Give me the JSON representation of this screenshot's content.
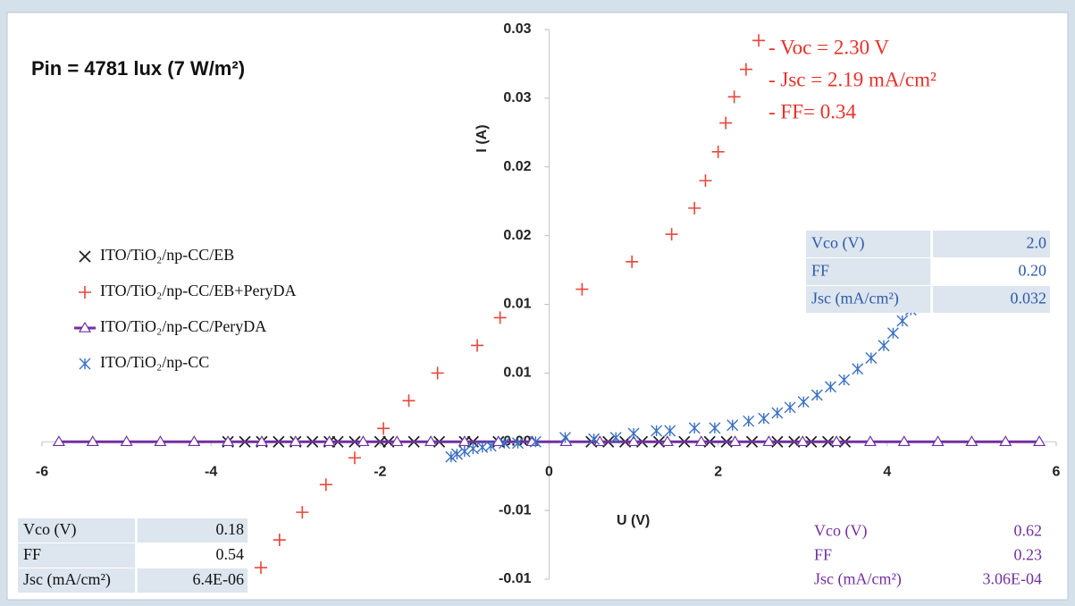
{
  "chart_data": {
    "type": "scatter",
    "title": "Pin = 4781 lux (7 W/m²)",
    "xlabel": "U (V)",
    "ylabel": "I (A)",
    "xlim": [
      -6,
      6
    ],
    "xticks": [
      -6,
      -4,
      -2,
      0,
      2,
      4,
      6
    ],
    "ylim": [
      -0.01,
      0.03
    ],
    "yticks": [
      {
        "value": -0.01,
        "label": "-0.01"
      },
      {
        "value": -0.005,
        "label": "-0.01"
      },
      {
        "value": 0,
        "label": "0.00"
      },
      {
        "value": 0.005,
        "label": "0.01"
      },
      {
        "value": 0.01,
        "label": "0.01"
      },
      {
        "value": 0.015,
        "label": "0.02"
      },
      {
        "value": 0.02,
        "label": "0.02"
      },
      {
        "value": 0.025,
        "label": "0.03"
      },
      {
        "value": 0.03,
        "label": "0.03"
      }
    ],
    "series": [
      {
        "name": "ITO/TiO₂/np-CC/EB",
        "color": "#1a1a1a",
        "marker": "x",
        "x": [
          -3.8,
          -3.6,
          -3.4,
          -3.2,
          -3.0,
          -2.8,
          -2.6,
          -2.5,
          -2.3,
          -2.0,
          -1.9,
          -1.6,
          -1.3,
          -1.0,
          -0.9,
          -0.6,
          0.5,
          0.7,
          0.9,
          1.1,
          1.3,
          1.6,
          1.9,
          2.1,
          2.4,
          2.7,
          2.9,
          3.1,
          3.3,
          3.5
        ],
        "values": [
          0,
          0,
          0,
          0,
          0,
          0,
          0,
          0,
          0,
          0,
          0,
          0,
          0,
          0,
          0,
          0,
          0,
          0,
          0,
          0,
          0,
          0,
          0,
          0,
          0,
          0,
          0,
          0,
          0,
          0
        ]
      },
      {
        "name": "ITO/TiO₂/np-CC/EB+PeryDA",
        "color": "#e8463a",
        "marker": "+",
        "x": [
          -3.41,
          -3.19,
          -2.92,
          -2.64,
          -2.3,
          -1.96,
          -1.66,
          -1.32,
          -0.85,
          -0.58,
          0.39,
          0.98,
          1.45,
          1.72,
          1.85,
          2.0,
          2.09,
          2.19,
          2.33,
          2.48
        ],
        "values": [
          -0.00916,
          -0.00714,
          -0.00513,
          -0.00312,
          -0.00117,
          0.00097,
          0.00299,
          0.005,
          0.00701,
          0.00903,
          0.0111,
          0.0131,
          0.0151,
          0.017,
          0.019,
          0.0211,
          0.0232,
          0.0251,
          0.0271,
          0.0292
        ]
      },
      {
        "name": "ITO/TiO₂/np-CC/PeryDA",
        "color": "#7030a0",
        "marker": "triangle",
        "line": true,
        "x": [
          -5.8,
          -5.4,
          -5.0,
          -4.6,
          -4.2,
          -3.8,
          -3.4,
          -3.0,
          -2.6,
          -2.2,
          -1.8,
          -1.4,
          -1.0,
          -0.6,
          -0.2,
          0.2,
          0.6,
          1.0,
          1.4,
          1.8,
          2.2,
          2.6,
          3.0,
          3.4,
          3.8,
          4.2,
          4.6,
          5.0,
          5.4,
          5.8
        ],
        "values": [
          0,
          0,
          0,
          0,
          0,
          0,
          0,
          0,
          0,
          0,
          0,
          0,
          0,
          0,
          0,
          0,
          0,
          0,
          0,
          0,
          0,
          0,
          0,
          0,
          0,
          0,
          0,
          0,
          0,
          0
        ]
      },
      {
        "name": "ITO/TiO₂/np-CC",
        "color": "#3a6fc4",
        "marker": "asterisk",
        "x": [
          -1.16,
          -1.09,
          -1.0,
          -0.9,
          -0.79,
          -0.69,
          -0.53,
          -0.37,
          -0.16,
          0.19,
          0.53,
          0.79,
          1.0,
          1.27,
          1.43,
          1.72,
          1.96,
          2.17,
          2.36,
          2.54,
          2.7,
          2.85,
          3.01,
          3.17,
          3.33,
          3.49,
          3.65,
          3.81,
          3.96,
          4.07,
          4.18,
          4.28
        ],
        "values": [
          -0.0011,
          -0.0009,
          -0.0007,
          -0.0005,
          -0.0004,
          -0.0003,
          -0.0001,
          -0.0001,
          0,
          0.0003,
          0.0002,
          0.0003,
          0.0006,
          0.0008,
          0.0008,
          0.001,
          0.001,
          0.0012,
          0.0015,
          0.0017,
          0.0021,
          0.0025,
          0.0029,
          0.0034,
          0.004,
          0.0045,
          0.0053,
          0.0061,
          0.007,
          0.0079,
          0.0088,
          0.0096
        ]
      }
    ],
    "annotations": [
      "- Voc = 2.30 V",
      "- Jsc = 2.19 mA/cm²",
      "- FF= 0.34"
    ],
    "annotation_color": "#e8302a",
    "tables": [
      {
        "color": "#2c5ba8",
        "rows": [
          [
            "Vco (V)",
            "2.0"
          ],
          [
            "FF",
            "0.20"
          ],
          [
            "Jsc (mA/cm²)",
            "0.032"
          ]
        ]
      },
      {
        "color": "#111111",
        "rows": [
          [
            "Vco (V)",
            "0.18"
          ],
          [
            "FF",
            "0.54"
          ],
          [
            "Jsc (mA/cm²)",
            "6.4E-06"
          ]
        ]
      },
      {
        "color": "#7030a0",
        "rows": [
          [
            "Vco (V)",
            "0.62"
          ],
          [
            "FF",
            "0.23"
          ],
          [
            "Jsc (mA/cm²)",
            "3.06E-04"
          ]
        ]
      }
    ]
  }
}
